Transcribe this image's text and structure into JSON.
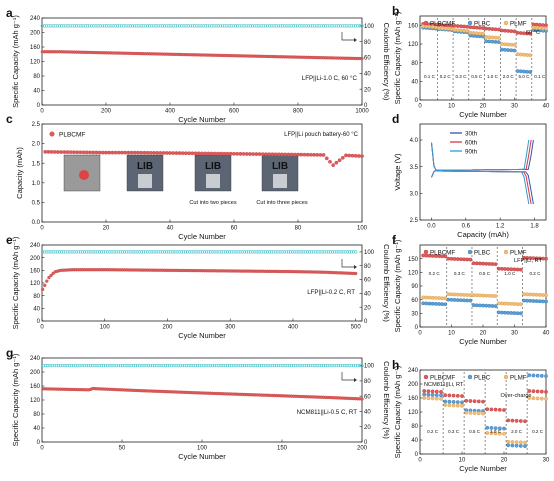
{
  "colors": {
    "capacity": "#e05a5a",
    "efficiency": "#58c7cf",
    "plbc": "#5a9fd6",
    "plmf": "#f2be7a",
    "plbcmf": "#e05a5a",
    "ce_grey": "#888888",
    "v30": "#3355aa",
    "v60": "#dd3344",
    "v90": "#2d9bd6"
  },
  "watermark": "",
  "chart_data": [
    {
      "id": "a",
      "panel_label": "a",
      "type": "scatter",
      "xlabel": "Cycle Number",
      "ylabel": "Specific Capacity (mAh g⁻¹)",
      "y2label": "Coulomb Efficiency (%)",
      "xlim": [
        0,
        1000
      ],
      "ylim": [
        0,
        240
      ],
      "y2lim": [
        0,
        110
      ],
      "xticks": [
        0,
        200,
        400,
        600,
        800,
        1000
      ],
      "yticks": [
        0,
        40,
        80,
        120,
        160,
        200,
        240
      ],
      "y2ticks": [
        0,
        20,
        40,
        60,
        80,
        100
      ],
      "annotations": [
        "LFP||Li-1.0 C, 60 °C"
      ],
      "series": [
        {
          "role": "capacity",
          "x": [
            1,
            50,
            100,
            200,
            300,
            400,
            500,
            600,
            700,
            800,
            900,
            1000
          ],
          "y": [
            147,
            147,
            146,
            144,
            142,
            140,
            138,
            136,
            134,
            132,
            130,
            128
          ]
        },
        {
          "role": "efficiency",
          "x": [
            1,
            100,
            200,
            300,
            400,
            500,
            600,
            700,
            800,
            900,
            1000
          ],
          "y": [
            100,
            100,
            100,
            100,
            100,
            100,
            100,
            100,
            100,
            100,
            100
          ]
        }
      ]
    },
    {
      "id": "b",
      "panel_label": "b",
      "type": "scatter",
      "xlabel": "Cycle Number",
      "ylabel": "Specific Capacity (mAh g⁻¹)",
      "xlim": [
        0,
        40
      ],
      "ylim": [
        0,
        180
      ],
      "xticks": [
        0,
        10,
        20,
        30,
        40
      ],
      "yticks": [
        0,
        40,
        80,
        120,
        160
      ],
      "legend": [
        "PLBCMF",
        "PLBC",
        "PLMF"
      ],
      "annotations": [
        "60 °C"
      ],
      "rate_labels": [
        "0.1 C",
        "0.2 C",
        "0.3 C",
        "0.5 C",
        "1.0 C",
        "2.0 C",
        "5.0 C",
        "0.1 C"
      ],
      "series": [
        {
          "name": "PLBCMF",
          "values": [
            163,
            161,
            159,
            156,
            153,
            149,
            144,
            162
          ]
        },
        {
          "name": "PLBC",
          "values": [
            155,
            152,
            147,
            138,
            126,
            108,
            62,
            150
          ]
        },
        {
          "name": "PLMF",
          "values": [
            158,
            154,
            150,
            144,
            135,
            120,
            98,
            155
          ]
        }
      ]
    },
    {
      "id": "c",
      "panel_label": "c",
      "type": "scatter",
      "xlabel": "Cycle Number",
      "ylabel": "Capacity (mAh)",
      "xlim": [
        0,
        100
      ],
      "ylim": [
        0,
        2.5
      ],
      "xticks": [
        0,
        20,
        40,
        60,
        80,
        100
      ],
      "yticks": [
        0,
        0.5,
        1.0,
        1.5,
        2.0,
        2.5
      ],
      "legend": [
        "PLBCMF"
      ],
      "annotations": [
        "LFP||Li pouch battery-60 °C",
        "Cut into two pieces",
        "Cut into three pieces"
      ],
      "photo_text": "LIB",
      "series": [
        {
          "name": "PLBCMF",
          "x": [
            1,
            10,
            20,
            30,
            40,
            50,
            60,
            70,
            80,
            88,
            91,
            95,
            100
          ],
          "y": [
            1.79,
            1.78,
            1.77,
            1.77,
            1.76,
            1.75,
            1.74,
            1.73,
            1.72,
            1.71,
            1.45,
            1.7,
            1.68
          ]
        }
      ]
    },
    {
      "id": "d",
      "panel_label": "d",
      "type": "line",
      "xlabel": "Capacity (mAh)",
      "ylabel": "Voltage (V)",
      "xlim": [
        -0.2,
        2.0
      ],
      "ylim": [
        2.5,
        4.3
      ],
      "xticks": [
        0.0,
        0.6,
        1.2,
        1.8
      ],
      "yticks": [
        2.5,
        3.0,
        3.5,
        4.0
      ],
      "legend": [
        "30th",
        "60th",
        "90th"
      ],
      "series": [
        {
          "name": "30th",
          "capacity": 1.78
        },
        {
          "name": "60th",
          "capacity": 1.74
        },
        {
          "name": "90th",
          "capacity": 1.7
        }
      ]
    },
    {
      "id": "e",
      "panel_label": "e",
      "type": "scatter",
      "xlabel": "Cycle Number",
      "ylabel": "Specific Capacity (mAh g⁻¹)",
      "y2label": "Coulomb Efficiency (%)",
      "xlim": [
        0,
        510
      ],
      "ylim": [
        0,
        240
      ],
      "y2lim": [
        0,
        110
      ],
      "xticks": [
        0,
        100,
        200,
        300,
        400,
        500
      ],
      "yticks": [
        0,
        40,
        80,
        120,
        160,
        200,
        240
      ],
      "y2ticks": [
        0,
        20,
        40,
        60,
        80,
        100
      ],
      "annotations": [
        "LFP||Li-0.2 C,  RT"
      ],
      "series": [
        {
          "role": "capacity",
          "x": [
            1,
            5,
            10,
            20,
            30,
            50,
            100,
            200,
            300,
            400,
            450,
            500
          ],
          "y": [
            100,
            115,
            135,
            155,
            160,
            162,
            162,
            160,
            158,
            156,
            154,
            150
          ]
        },
        {
          "role": "efficiency",
          "x": [
            1,
            100,
            200,
            300,
            400,
            500
          ],
          "y": [
            100,
            100,
            100,
            100,
            100,
            100
          ]
        }
      ]
    },
    {
      "id": "f",
      "panel_label": "f",
      "type": "scatter",
      "xlabel": "Cycle Number",
      "ylabel": "Specific Capacity (mAh g⁻¹)",
      "xlim": [
        0,
        40
      ],
      "ylim": [
        0,
        180
      ],
      "xticks": [
        0,
        10,
        20,
        30,
        40
      ],
      "yticks": [
        0,
        30,
        60,
        90,
        120,
        150
      ],
      "legend": [
        "PLBCMF",
        "PLBC",
        "PLMF"
      ],
      "annotations": [
        "LFP||Li, RT"
      ],
      "rate_labels": [
        "0.2 C",
        "0.3 C",
        "0.5 C",
        "1.0 C",
        "0.2 C"
      ],
      "series": [
        {
          "name": "PLBCMF",
          "values": [
            157,
            150,
            140,
            128,
            152
          ]
        },
        {
          "name": "PLBC",
          "values": [
            52,
            60,
            48,
            32,
            58
          ]
        },
        {
          "name": "PLMF",
          "values": [
            65,
            72,
            70,
            52,
            72
          ]
        }
      ]
    },
    {
      "id": "g",
      "panel_label": "g",
      "type": "scatter",
      "xlabel": "Cycle Number",
      "ylabel": "Specific Capacity (mAh g⁻¹)",
      "y2label": "Coulomb Efficiency (%)",
      "xlim": [
        0,
        200
      ],
      "ylim": [
        0,
        240
      ],
      "y2lim": [
        0,
        110
      ],
      "xticks": [
        0,
        50,
        100,
        150,
        200
      ],
      "yticks": [
        0,
        40,
        80,
        120,
        160,
        200,
        240
      ],
      "y2ticks": [
        0,
        20,
        40,
        60,
        80,
        100
      ],
      "annotations": [
        "NCM811||Li-0.5 C,  RT"
      ],
      "series": [
        {
          "role": "capacity",
          "x": [
            1,
            10,
            30,
            31,
            35,
            60,
            100,
            150,
            180,
            200
          ],
          "y": [
            152,
            151,
            149,
            153,
            152,
            147,
            140,
            132,
            127,
            123
          ]
        },
        {
          "role": "efficiency",
          "x": [
            1,
            50,
            100,
            150,
            200
          ],
          "y": [
            100,
            100,
            100,
            100,
            100
          ]
        }
      ]
    },
    {
      "id": "h",
      "panel_label": "h",
      "type": "scatter",
      "xlabel": "Cycle Number",
      "ylabel": "Specific Capacity (mAh g⁻¹)",
      "xlim": [
        0,
        30
      ],
      "ylim": [
        0,
        240
      ],
      "xticks": [
        0,
        10,
        20,
        30
      ],
      "yticks": [
        0,
        40,
        80,
        120,
        160,
        200,
        240
      ],
      "legend": [
        "PLBCMF",
        "PLBC",
        "PLMF"
      ],
      "annotations": [
        "NCM811||Li, RT",
        "Over-charge"
      ],
      "rate_labels": [
        "0.2 C",
        "0.3 C",
        "0.5 C",
        "1.0 C",
        "2.0 C",
        "0.2 C"
      ],
      "series": [
        {
          "name": "PLBCMF",
          "values": [
            180,
            168,
            152,
            128,
            96,
            180
          ]
        },
        {
          "name": "PLBC",
          "values": [
            170,
            150,
            125,
            75,
            25,
            225
          ]
        },
        {
          "name": "PLMF",
          "values": [
            160,
            140,
            118,
            60,
            35,
            160
          ]
        }
      ]
    }
  ]
}
